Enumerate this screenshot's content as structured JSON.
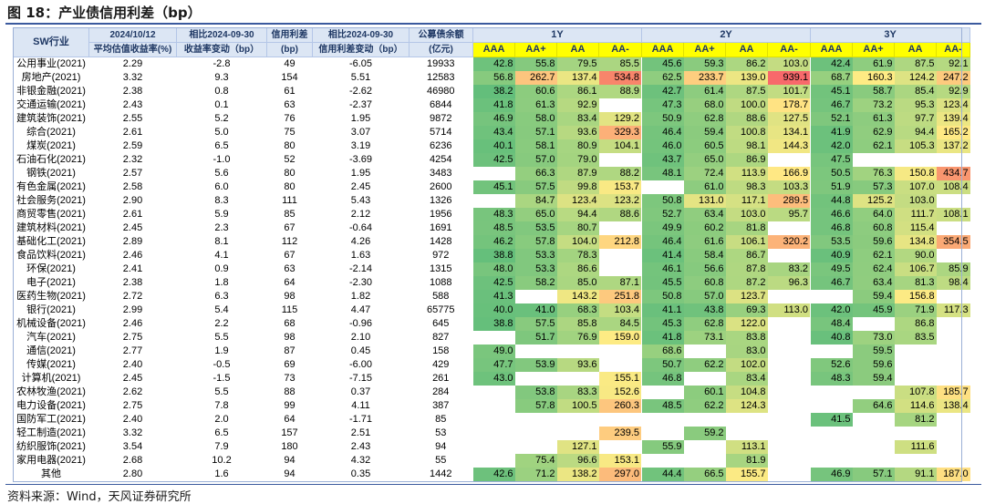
{
  "figure_title": "图 18：产业债信用利差（bp）",
  "source_note": "资料来源：Wind，天风证券研究所",
  "headers": {
    "industry": "SW行业",
    "yield_date": "2024/10/12",
    "yield_label": "平均估值收益率(%)",
    "yield_chg_date": "相比2024-09-30",
    "yield_chg_label": "收益率变动（bp）",
    "spread": "信用利差",
    "spread_unit": "(bp)",
    "spread_chg_date": "相比2024-09-30",
    "spread_chg_label": "信用利差变动（bp）",
    "amount": "公募债余额",
    "amount_unit": "(亿元)",
    "tenors": [
      "1Y",
      "2Y",
      "3Y"
    ],
    "ratings": [
      "AAA",
      "AA+",
      "AA",
      "AA-"
    ]
  },
  "rows": [
    {
      "name": "公用事业(2021)",
      "yield": "2.29",
      "ychg": "-2.8",
      "spread": "49",
      "schg": "-6.05",
      "amt": "19933",
      "y1": [
        "42.8",
        "55.8",
        "79.5",
        "85.5"
      ],
      "y2": [
        "45.6",
        "59.3",
        "86.2",
        "103.0"
      ],
      "y3": [
        "42.4",
        "61.9",
        "87.5",
        "92.1"
      ]
    },
    {
      "name": "房地产(2021)",
      "yield": "3.32",
      "ychg": "9.3",
      "spread": "154",
      "schg": "5.51",
      "amt": "12583",
      "y1": [
        "56.8",
        "262.7",
        "137.4",
        "534.8"
      ],
      "y2": [
        "62.5",
        "233.7",
        "139.0",
        "939.1"
      ],
      "y3": [
        "68.7",
        "160.3",
        "124.2",
        "247.2"
      ]
    },
    {
      "name": "非银金融(2021)",
      "yield": "2.38",
      "ychg": "0.8",
      "spread": "61",
      "schg": "-2.62",
      "amt": "46980",
      "y1": [
        "38.2",
        "60.6",
        "86.1",
        "88.9"
      ],
      "y2": [
        "42.7",
        "61.4",
        "87.5",
        "101.7"
      ],
      "y3": [
        "45.1",
        "58.7",
        "85.4",
        "92.9"
      ]
    },
    {
      "name": "交通运输(2021)",
      "yield": "2.43",
      "ychg": "0.1",
      "spread": "63",
      "schg": "-2.37",
      "amt": "6844",
      "y1": [
        "41.8",
        "61.3",
        "92.9",
        ""
      ],
      "y2": [
        "47.3",
        "68.0",
        "100.0",
        "178.7"
      ],
      "y3": [
        "46.7",
        "73.2",
        "95.3",
        "123.4"
      ]
    },
    {
      "name": "建筑装饰(2021)",
      "yield": "2.55",
      "ychg": "5.2",
      "spread": "76",
      "schg": "1.95",
      "amt": "9872",
      "y1": [
        "46.9",
        "58.0",
        "83.4",
        "129.2"
      ],
      "y2": [
        "50.9",
        "62.8",
        "88.6",
        "127.5"
      ],
      "y3": [
        "52.1",
        "61.3",
        "97.7",
        "139.4"
      ]
    },
    {
      "name": "综合(2021)",
      "yield": "2.61",
      "ychg": "5.0",
      "spread": "75",
      "schg": "3.07",
      "amt": "5714",
      "y1": [
        "43.4",
        "57.1",
        "93.6",
        "329.3"
      ],
      "y2": [
        "46.4",
        "59.4",
        "100.8",
        "134.1"
      ],
      "y3": [
        "41.9",
        "62.9",
        "94.4",
        "165.2"
      ]
    },
    {
      "name": "煤炭(2021)",
      "yield": "2.59",
      "ychg": "6.5",
      "spread": "80",
      "schg": "3.19",
      "amt": "6236",
      "y1": [
        "40.1",
        "58.1",
        "80.9",
        "104.1"
      ],
      "y2": [
        "46.0",
        "60.5",
        "98.1",
        "144.3"
      ],
      "y3": [
        "42.0",
        "62.1",
        "105.3",
        "137.2"
      ]
    },
    {
      "name": "石油石化(2021)",
      "yield": "2.32",
      "ychg": "-1.0",
      "spread": "52",
      "schg": "-3.69",
      "amt": "4254",
      "y1": [
        "42.5",
        "57.0",
        "79.0",
        ""
      ],
      "y2": [
        "43.7",
        "65.0",
        "86.9",
        ""
      ],
      "y3": [
        "47.5",
        "",
        "",
        ""
      ]
    },
    {
      "name": "钢铁(2021)",
      "yield": "2.57",
      "ychg": "5.6",
      "spread": "80",
      "schg": "1.95",
      "amt": "3483",
      "y1": [
        "",
        "66.3",
        "87.9",
        "88.2"
      ],
      "y2": [
        "48.1",
        "72.4",
        "113.9",
        "166.9"
      ],
      "y3": [
        "50.5",
        "76.3",
        "150.8",
        "434.7"
      ]
    },
    {
      "name": "有色金属(2021)",
      "yield": "2.58",
      "ychg": "6.0",
      "spread": "80",
      "schg": "2.45",
      "amt": "2600",
      "y1": [
        "45.1",
        "57.5",
        "99.8",
        "153.7"
      ],
      "y2": [
        "",
        "61.0",
        "98.3",
        "103.3"
      ],
      "y3": [
        "51.9",
        "57.3",
        "107.0",
        "108.4"
      ]
    },
    {
      "name": "社会服务(2021)",
      "yield": "2.90",
      "ychg": "8.3",
      "spread": "111",
      "schg": "5.43",
      "amt": "1326",
      "y1": [
        "",
        "84.7",
        "123.4",
        "123.2"
      ],
      "y2": [
        "50.8",
        "131.0",
        "117.1",
        "289.5"
      ],
      "y3": [
        "44.8",
        "125.2",
        "103.0",
        ""
      ]
    },
    {
      "name": "商贸零售(2021)",
      "yield": "2.61",
      "ychg": "5.9",
      "spread": "85",
      "schg": "2.12",
      "amt": "1956",
      "y1": [
        "48.3",
        "65.0",
        "94.4",
        "88.6"
      ],
      "y2": [
        "52.7",
        "63.4",
        "103.0",
        "95.7"
      ],
      "y3": [
        "46.6",
        "64.0",
        "111.7",
        "108.1"
      ]
    },
    {
      "name": "建筑材料(2021)",
      "yield": "2.45",
      "ychg": "2.3",
      "spread": "67",
      "schg": "-0.64",
      "amt": "1691",
      "y1": [
        "48.5",
        "53.5",
        "80.7",
        ""
      ],
      "y2": [
        "49.9",
        "60.2",
        "81.8",
        ""
      ],
      "y3": [
        "46.8",
        "60.8",
        "115.4",
        ""
      ]
    },
    {
      "name": "基础化工(2021)",
      "yield": "2.89",
      "ychg": "8.1",
      "spread": "112",
      "schg": "4.26",
      "amt": "1428",
      "y1": [
        "46.2",
        "57.8",
        "104.0",
        "212.8"
      ],
      "y2": [
        "46.4",
        "61.6",
        "106.1",
        "320.2"
      ],
      "y3": [
        "53.5",
        "59.6",
        "134.8",
        "354.5"
      ]
    },
    {
      "name": "食品饮料(2021)",
      "yield": "2.46",
      "ychg": "4.1",
      "spread": "67",
      "schg": "1.63",
      "amt": "972",
      "y1": [
        "38.8",
        "53.3",
        "78.3",
        ""
      ],
      "y2": [
        "41.4",
        "58.4",
        "86.7",
        ""
      ],
      "y3": [
        "40.9",
        "62.1",
        "90.0",
        ""
      ]
    },
    {
      "name": "环保(2021)",
      "yield": "2.41",
      "ychg": "0.9",
      "spread": "63",
      "schg": "-2.14",
      "amt": "1315",
      "y1": [
        "48.0",
        "53.3",
        "86.6",
        ""
      ],
      "y2": [
        "46.1",
        "56.6",
        "87.8",
        "83.2"
      ],
      "y3": [
        "49.5",
        "62.4",
        "106.7",
        "85.9"
      ]
    },
    {
      "name": "电子(2021)",
      "yield": "2.38",
      "ychg": "1.8",
      "spread": "64",
      "schg": "-2.30",
      "amt": "1088",
      "y1": [
        "42.5",
        "58.2",
        "85.0",
        "87.1"
      ],
      "y2": [
        "45.5",
        "60.8",
        "87.2",
        "96.3"
      ],
      "y3": [
        "46.7",
        "63.4",
        "81.3",
        "98.4"
      ]
    },
    {
      "name": "医药生物(2021)",
      "yield": "2.72",
      "ychg": "6.3",
      "spread": "98",
      "schg": "1.82",
      "amt": "588",
      "y1": [
        "41.3",
        "",
        "143.2",
        "251.8"
      ],
      "y2": [
        "50.8",
        "57.0",
        "123.7",
        ""
      ],
      "y3": [
        "",
        "59.4",
        "156.8",
        ""
      ]
    },
    {
      "name": "银行(2021)",
      "yield": "2.99",
      "ychg": "5.4",
      "spread": "115",
      "schg": "4.47",
      "amt": "65775",
      "y1": [
        "40.0",
        "41.0",
        "68.3",
        "103.4"
      ],
      "y2": [
        "41.1",
        "43.8",
        "69.3",
        "113.0"
      ],
      "y3": [
        "42.0",
        "45.9",
        "71.9",
        "117.3"
      ]
    },
    {
      "name": "机械设备(2021)",
      "yield": "2.46",
      "ychg": "2.2",
      "spread": "68",
      "schg": "-0.96",
      "amt": "645",
      "y1": [
        "38.8",
        "57.5",
        "85.8",
        "84.5"
      ],
      "y2": [
        "45.3",
        "62.8",
        "122.0",
        ""
      ],
      "y3": [
        "48.4",
        "",
        "86.8",
        ""
      ]
    },
    {
      "name": "汽车(2021)",
      "yield": "2.75",
      "ychg": "5.5",
      "spread": "98",
      "schg": "2.10",
      "amt": "827",
      "y1": [
        "",
        "51.7",
        "76.9",
        "159.0"
      ],
      "y2": [
        "41.8",
        "73.1",
        "83.8",
        ""
      ],
      "y3": [
        "40.8",
        "73.0",
        "83.5",
        ""
      ]
    },
    {
      "name": "通信(2021)",
      "yield": "2.77",
      "ychg": "1.9",
      "spread": "87",
      "schg": "0.45",
      "amt": "158",
      "y1": [
        "49.0",
        "",
        "",
        ""
      ],
      "y2": [
        "68.6",
        "",
        "83.0",
        ""
      ],
      "y3": [
        "",
        "59.5",
        "",
        ""
      ]
    },
    {
      "name": "传媒(2021)",
      "yield": "2.40",
      "ychg": "-0.5",
      "spread": "69",
      "schg": "-6.00",
      "amt": "429",
      "y1": [
        "47.7",
        "53.9",
        "93.6",
        ""
      ],
      "y2": [
        "50.7",
        "62.2",
        "102.0",
        ""
      ],
      "y3": [
        "52.6",
        "59.6",
        "",
        ""
      ]
    },
    {
      "name": "计算机(2021)",
      "yield": "2.45",
      "ychg": "-1.5",
      "spread": "73",
      "schg": "-7.15",
      "amt": "261",
      "y1": [
        "43.0",
        "",
        "",
        "155.1"
      ],
      "y2": [
        "46.8",
        "",
        "83.4",
        ""
      ],
      "y3": [
        "48.3",
        "59.4",
        "",
        ""
      ]
    },
    {
      "name": "农林牧渔(2021)",
      "yield": "2.62",
      "ychg": "5.5",
      "spread": "88",
      "schg": "0.37",
      "amt": "284",
      "y1": [
        "",
        "53.8",
        "83.3",
        "152.6"
      ],
      "y2": [
        "",
        "60.1",
        "104.8",
        ""
      ],
      "y3": [
        "",
        "",
        "107.8",
        "185.7"
      ]
    },
    {
      "name": "电力设备(2021)",
      "yield": "2.75",
      "ychg": "7.8",
      "spread": "99",
      "schg": "4.11",
      "amt": "387",
      "y1": [
        "",
        "57.8",
        "100.5",
        "260.3"
      ],
      "y2": [
        "48.5",
        "62.2",
        "124.3",
        ""
      ],
      "y3": [
        "",
        "64.6",
        "114.6",
        "138.4"
      ]
    },
    {
      "name": "国防军工(2021)",
      "yield": "2.40",
      "ychg": "2.0",
      "spread": "64",
      "schg": "-1.71",
      "amt": "85",
      "y1": [
        "",
        "",
        "",
        ""
      ],
      "y2": [
        "",
        "",
        "",
        ""
      ],
      "y3": [
        "41.5",
        "",
        "81.2",
        ""
      ]
    },
    {
      "name": "轻工制造(2021)",
      "yield": "3.32",
      "ychg": "6.5",
      "spread": "157",
      "schg": "2.51",
      "amt": "53",
      "y1": [
        "",
        "",
        "",
        "239.5"
      ],
      "y2": [
        "",
        "59.2",
        "",
        ""
      ],
      "y3": [
        "",
        "",
        "",
        ""
      ]
    },
    {
      "name": "纺织服饰(2021)",
      "yield": "3.54",
      "ychg": "7.9",
      "spread": "180",
      "schg": "2.43",
      "amt": "94",
      "y1": [
        "",
        "",
        "127.1",
        ""
      ],
      "y2": [
        "55.9",
        "",
        "113.1",
        ""
      ],
      "y3": [
        "",
        "",
        "111.6",
        ""
      ]
    },
    {
      "name": "家用电器(2021)",
      "yield": "2.68",
      "ychg": "10.2",
      "spread": "94",
      "schg": "4.32",
      "amt": "55",
      "y1": [
        "",
        "75.4",
        "96.6",
        "153.1"
      ],
      "y2": [
        "",
        "",
        "81.9",
        ""
      ],
      "y3": [
        "",
        "",
        "",
        ""
      ]
    },
    {
      "name": "其他",
      "yield": "2.80",
      "ychg": "1.6",
      "spread": "94",
      "schg": "0.35",
      "amt": "1442",
      "y1": [
        "42.6",
        "71.2",
        "138.2",
        "297.0"
      ],
      "y2": [
        "44.4",
        "66.5",
        "155.7",
        ""
      ],
      "y3": [
        "46.9",
        "57.1",
        "91.1",
        "187.0"
      ]
    }
  ]
}
